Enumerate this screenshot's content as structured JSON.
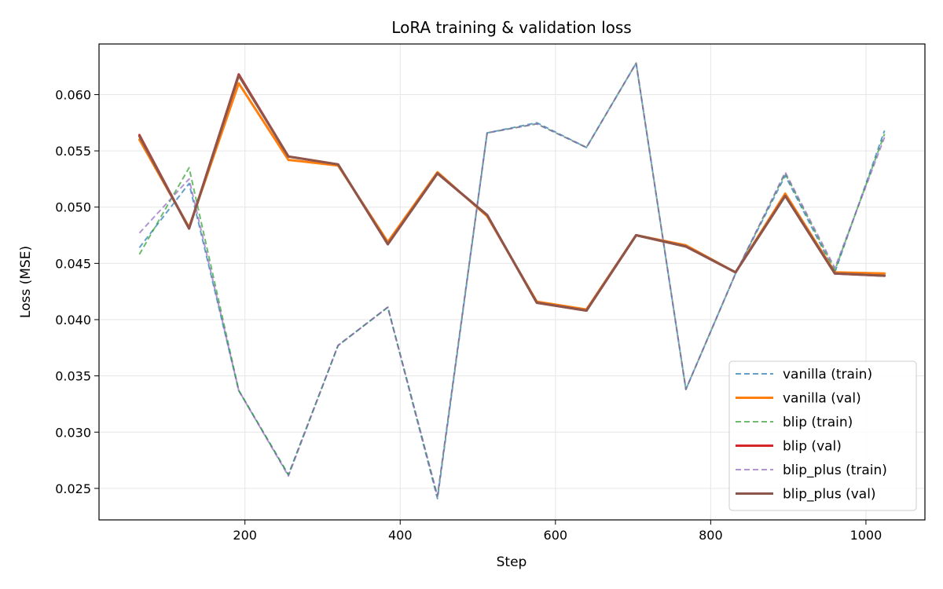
{
  "chart_data": {
    "type": "line",
    "title": "LoRA training & validation loss",
    "xlabel": "Step",
    "ylabel": "Loss (MSE)",
    "xlim": [
      12,
      1076
    ],
    "ylim": [
      0.0222,
      0.0645
    ],
    "xticks": [
      200,
      400,
      600,
      800,
      1000
    ],
    "yticks": [
      0.025,
      0.03,
      0.035,
      0.04,
      0.045,
      0.05,
      0.055,
      0.06
    ],
    "ytick_labels": [
      "0.025",
      "0.030",
      "0.035",
      "0.040",
      "0.045",
      "0.050",
      "0.055",
      "0.060"
    ],
    "grid": true,
    "legend_position": "bottom-right",
    "x": [
      64,
      128,
      192,
      256,
      320,
      384,
      448,
      512,
      576,
      640,
      704,
      768,
      832,
      896,
      960,
      1024
    ],
    "series": [
      {
        "name": "vanilla (train)",
        "color": "#1f77b4",
        "style": "dashed",
        "values": [
          0.0464,
          0.0521,
          0.0337,
          0.0262,
          0.0377,
          0.0411,
          0.0241,
          0.0566,
          0.0575,
          0.0553,
          0.0628,
          0.0338,
          0.0441,
          0.0528,
          0.0442,
          0.0568
        ]
      },
      {
        "name": "vanilla (val)",
        "color": "#ff7f0e",
        "style": "solid",
        "values": [
          0.056,
          0.0482,
          0.061,
          0.0542,
          0.0537,
          0.0469,
          0.0531,
          0.0492,
          0.0416,
          0.0409,
          0.0475,
          0.0466,
          0.0442,
          0.0512,
          0.0442,
          0.0441
        ]
      },
      {
        "name": "blip (train)",
        "color": "#2ca02c",
        "style": "dashed",
        "values": [
          0.0458,
          0.0535,
          0.0337,
          0.0262,
          0.0377,
          0.0411,
          0.0243,
          0.0566,
          0.0574,
          0.0553,
          0.0628,
          0.0338,
          0.0441,
          0.053,
          0.0444,
          0.0565
        ]
      },
      {
        "name": "blip (val)",
        "color": "#d62728",
        "style": "solid",
        "values": [
          0.0564,
          0.0481,
          0.0618,
          0.0545,
          0.0538,
          0.0467,
          0.053,
          0.0493,
          0.0415,
          0.0408,
          0.0475,
          0.0465,
          0.0442,
          0.051,
          0.0441,
          0.0439
        ]
      },
      {
        "name": "blip_plus (train)",
        "color": "#9467bd",
        "style": "dashed",
        "values": [
          0.0477,
          0.0525,
          0.0337,
          0.0261,
          0.0377,
          0.0411,
          0.0243,
          0.0566,
          0.0574,
          0.0553,
          0.0628,
          0.0338,
          0.0441,
          0.0531,
          0.0446,
          0.0562
        ]
      },
      {
        "name": "blip_plus (val)",
        "color": "#8c564b",
        "style": "solid",
        "values": [
          0.0563,
          0.0481,
          0.0617,
          0.0545,
          0.0538,
          0.0467,
          0.053,
          0.0493,
          0.0415,
          0.0408,
          0.0475,
          0.0465,
          0.0442,
          0.051,
          0.0441,
          0.0439
        ]
      }
    ]
  }
}
